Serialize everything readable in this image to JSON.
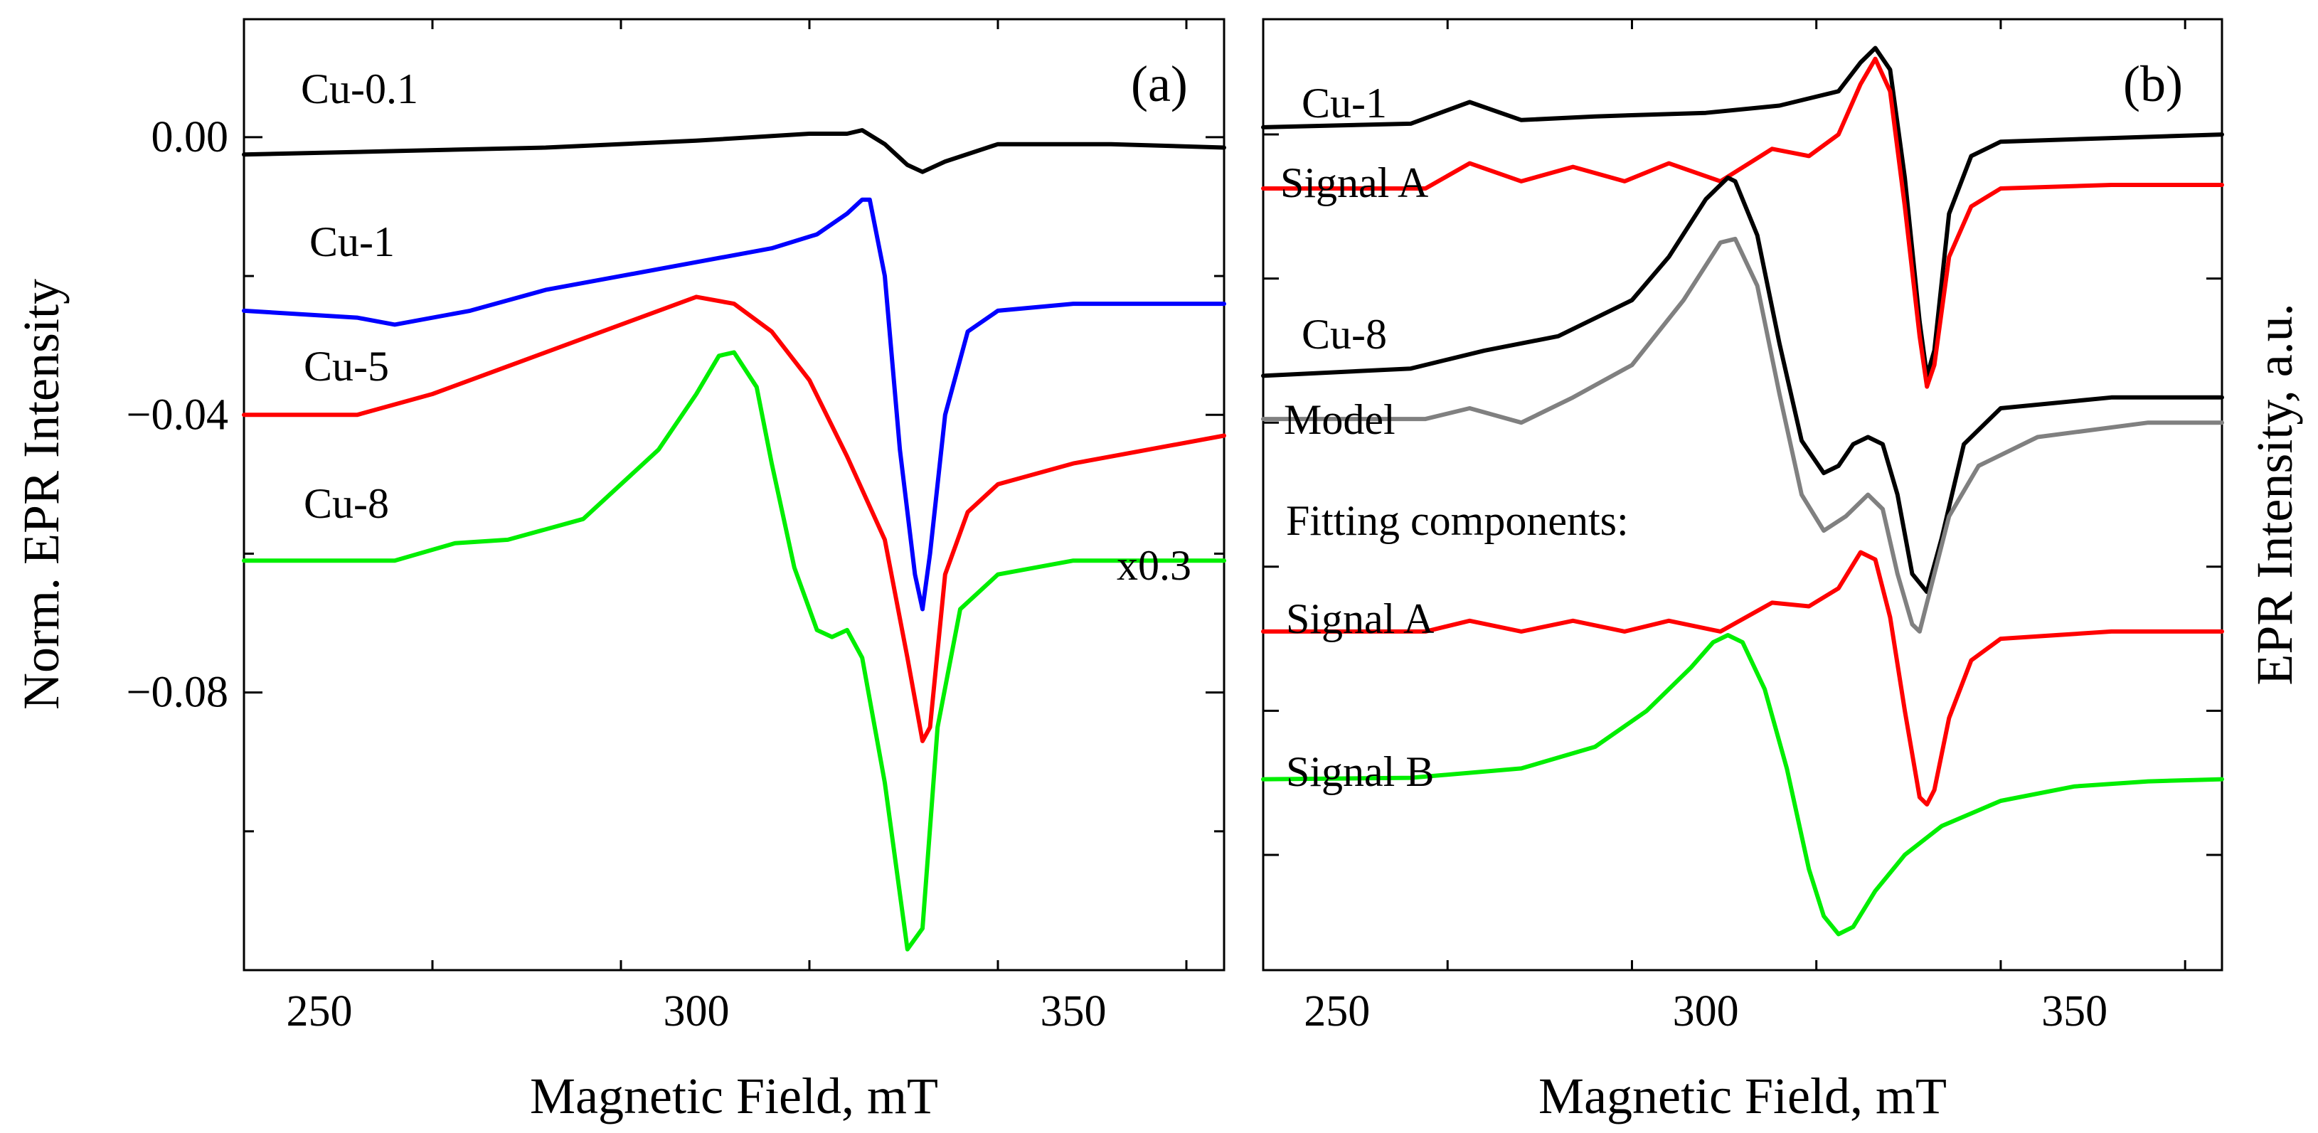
{
  "chart_data": [
    {
      "id": "a",
      "type": "line",
      "panel_label": "(a)",
      "xlabel": "Magnetic Field, mT",
      "ylabel": "Norm. EPR Intensity",
      "xlim": [
        240,
        370
      ],
      "ylim": [
        -0.12,
        0.017
      ],
      "xticks": [
        250,
        300,
        350
      ],
      "xtick_labels": [
        "250",
        "300",
        "350"
      ],
      "yticks": [
        0.0,
        -0.04,
        -0.08
      ],
      "ytick_labels": [
        "0.00",
        "−0.04",
        "−0.08"
      ],
      "annotation": "x0.3",
      "series": [
        {
          "name": "Cu-0.1",
          "color": "#000000",
          "x": [
            240,
            260,
            280,
            300,
            315,
            320,
            322,
            325,
            328,
            330,
            333,
            340,
            355,
            370
          ],
          "y": [
            -0.0025,
            -0.002,
            -0.0015,
            -0.0005,
            0.0005,
            0.0005,
            0.001,
            -0.001,
            -0.004,
            -0.005,
            -0.0035,
            -0.001,
            -0.001,
            -0.0015
          ]
        },
        {
          "name": "Cu-1",
          "color": "#0000ff",
          "x": [
            240,
            255,
            260,
            270,
            280,
            290,
            300,
            310,
            316,
            320,
            322,
            323,
            325,
            327,
            329,
            330,
            331,
            333,
            336,
            340,
            350,
            370
          ],
          "y": [
            -0.025,
            -0.026,
            -0.027,
            -0.025,
            -0.022,
            -0.02,
            -0.018,
            -0.016,
            -0.014,
            -0.011,
            -0.009,
            -0.009,
            -0.02,
            -0.045,
            -0.063,
            -0.068,
            -0.06,
            -0.04,
            -0.028,
            -0.025,
            -0.024,
            -0.024
          ]
        },
        {
          "name": "Cu-5",
          "color": "#ff0000",
          "x": [
            240,
            255,
            265,
            275,
            285,
            295,
            300,
            305,
            310,
            315,
            320,
            325,
            328,
            330,
            331,
            333,
            336,
            340,
            350,
            370
          ],
          "y": [
            -0.04,
            -0.04,
            -0.037,
            -0.033,
            -0.029,
            -0.025,
            -0.023,
            -0.024,
            -0.028,
            -0.035,
            -0.046,
            -0.058,
            -0.075,
            -0.087,
            -0.085,
            -0.063,
            -0.054,
            -0.05,
            -0.047,
            -0.043
          ]
        },
        {
          "name": "Cu-8",
          "color": "#00ee00",
          "x": [
            240,
            260,
            268,
            275,
            285,
            295,
            300,
            303,
            305,
            308,
            310,
            313,
            316,
            318,
            320,
            322,
            325,
            328,
            330,
            332,
            335,
            340,
            350,
            370
          ],
          "y": [
            -0.061,
            -0.061,
            -0.0585,
            -0.058,
            -0.055,
            -0.045,
            -0.037,
            -0.0315,
            -0.031,
            -0.036,
            -0.047,
            -0.062,
            -0.071,
            -0.072,
            -0.071,
            -0.075,
            -0.093,
            -0.117,
            -0.114,
            -0.085,
            -0.068,
            -0.063,
            -0.061,
            -0.061
          ]
        }
      ],
      "curve_labels": [
        {
          "series": "Cu-0.1",
          "text": "Cu-0.1"
        },
        {
          "series": "Cu-1",
          "text": "Cu-1"
        },
        {
          "series": "Cu-5",
          "text": "Cu-5"
        },
        {
          "series": "Cu-8",
          "text": "Cu-8"
        }
      ]
    },
    {
      "id": "b",
      "type": "line",
      "panel_label": "(b)",
      "xlabel": "Magnetic Field, mT",
      "ylabel": "EPR Intensity, a.u.",
      "xlim": [
        240,
        370
      ],
      "ylim": [
        0,
        13.2
      ],
      "xticks": [
        250,
        300,
        350
      ],
      "xtick_labels": [
        "250",
        "300",
        "350"
      ],
      "yticks": [
        1.6,
        3.6,
        5.6,
        7.6,
        9.6,
        11.6
      ],
      "annotation": "Fitting components:",
      "series": [
        {
          "name": "Cu-1",
          "color": "#000000",
          "x": [
            240,
            260,
            268,
            275,
            285,
            300,
            310,
            318,
            321,
            323,
            325,
            327,
            329,
            330,
            331,
            333,
            336,
            340,
            355,
            370
          ],
          "y": [
            11.7,
            11.75,
            12.05,
            11.8,
            11.85,
            11.9,
            12.0,
            12.2,
            12.6,
            12.8,
            12.5,
            11.0,
            9.0,
            8.25,
            8.6,
            10.5,
            11.3,
            11.5,
            11.55,
            11.6
          ]
        },
        {
          "name": "Signal A (Cu-1 fit)",
          "color": "#ff0000",
          "x": [
            240,
            262,
            268,
            275,
            282,
            289,
            295,
            302,
            309,
            314,
            318,
            321,
            323,
            325,
            327,
            329,
            330,
            331,
            333,
            336,
            340,
            355,
            370
          ],
          "y": [
            10.85,
            10.85,
            11.2,
            10.95,
            11.15,
            10.95,
            11.2,
            10.95,
            11.4,
            11.3,
            11.6,
            12.3,
            12.65,
            12.2,
            10.6,
            8.8,
            8.1,
            8.4,
            9.9,
            10.6,
            10.85,
            10.9,
            10.9
          ]
        },
        {
          "name": "Cu-8",
          "color": "#000000",
          "x": [
            240,
            260,
            270,
            280,
            290,
            295,
            300,
            303,
            304,
            307,
            310,
            313,
            316,
            318,
            320,
            322,
            324,
            326,
            328,
            330,
            332,
            335,
            340,
            355,
            370
          ],
          "y": [
            8.25,
            8.35,
            8.6,
            8.8,
            9.3,
            9.9,
            10.7,
            11.0,
            10.95,
            10.2,
            8.7,
            7.35,
            6.9,
            7.0,
            7.3,
            7.4,
            7.3,
            6.6,
            5.5,
            5.25,
            6.0,
            7.3,
            7.8,
            7.95,
            7.95
          ]
        },
        {
          "name": "Model",
          "color": "#808080",
          "x": [
            240,
            262,
            268,
            275,
            282,
            290,
            297,
            302,
            304,
            307,
            310,
            313,
            316,
            319,
            322,
            324,
            326,
            328,
            329,
            331,
            333,
            337,
            345,
            360,
            370
          ],
          "y": [
            7.65,
            7.65,
            7.8,
            7.6,
            7.95,
            8.4,
            9.3,
            10.1,
            10.15,
            9.5,
            8.0,
            6.6,
            6.1,
            6.3,
            6.6,
            6.4,
            5.5,
            4.8,
            4.7,
            5.5,
            6.3,
            7.0,
            7.4,
            7.6,
            7.6
          ]
        },
        {
          "name": "Signal A",
          "color": "#ff0000",
          "x": [
            240,
            262,
            268,
            275,
            282,
            289,
            295,
            302,
            309,
            314,
            318,
            321,
            323,
            325,
            327,
            329,
            330,
            331,
            333,
            336,
            340,
            355,
            370
          ],
          "y": [
            4.7,
            4.7,
            4.85,
            4.7,
            4.85,
            4.7,
            4.85,
            4.7,
            5.1,
            5.05,
            5.3,
            5.8,
            5.7,
            4.9,
            3.6,
            2.4,
            2.3,
            2.5,
            3.5,
            4.3,
            4.6,
            4.7,
            4.7
          ]
        },
        {
          "name": "Signal B",
          "color": "#00ee00",
          "x": [
            240,
            260,
            275,
            285,
            292,
            298,
            301,
            303,
            305,
            308,
            311,
            314,
            316,
            318,
            320,
            323,
            327,
            332,
            340,
            350,
            360,
            370
          ],
          "y": [
            2.65,
            2.67,
            2.8,
            3.1,
            3.6,
            4.2,
            4.55,
            4.65,
            4.55,
            3.9,
            2.8,
            1.4,
            0.75,
            0.5,
            0.6,
            1.1,
            1.6,
            2.0,
            2.35,
            2.55,
            2.62,
            2.65
          ]
        }
      ],
      "curve_labels": [
        {
          "series": "Cu-1",
          "text": "Cu-1"
        },
        {
          "series": "Signal A (Cu-1 fit)",
          "text": "Signal A"
        },
        {
          "series": "Cu-8",
          "text": "Cu-8"
        },
        {
          "series": "Model",
          "text": "Model"
        },
        {
          "series": "Signal A",
          "text": "Signal A"
        },
        {
          "series": "Signal B",
          "text": "Signal B"
        }
      ]
    }
  ]
}
